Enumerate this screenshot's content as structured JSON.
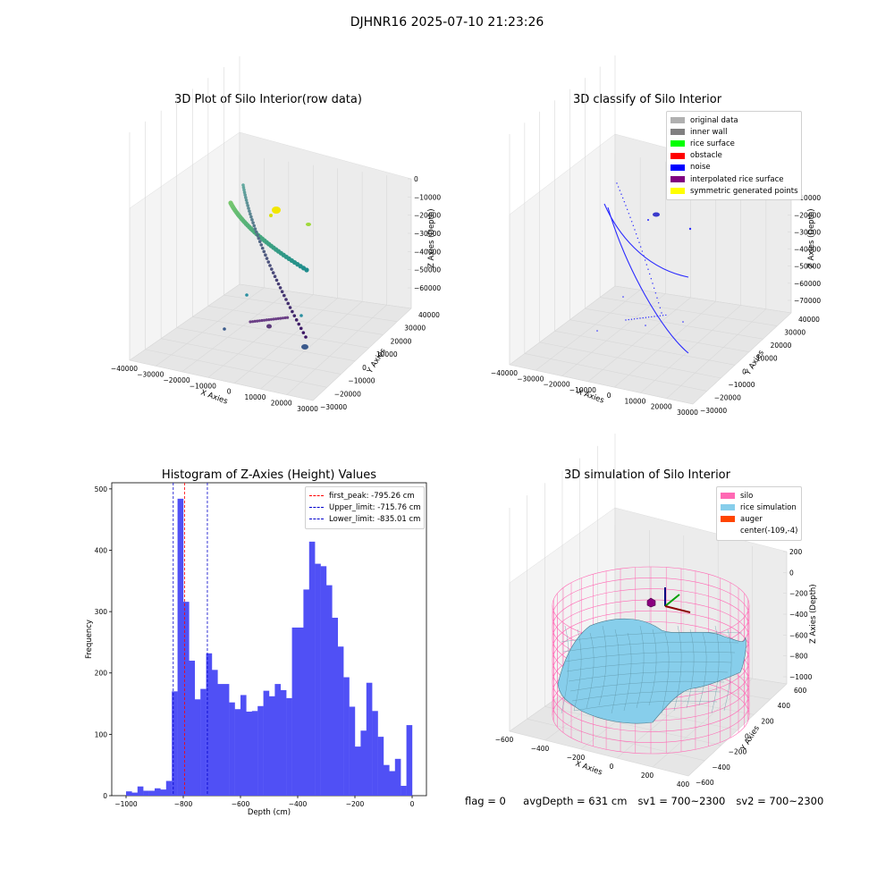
{
  "suptitle": "DJHNR16 2025-07-10 21:23:26",
  "footer": {
    "flag": "flag = 0",
    "avg_depth": "avgDepth = 631 cm",
    "sv1": "sv1 = 700~2300",
    "sv2": "sv2 = 700~2300"
  },
  "colors": {
    "hist_bar": "#5050f5",
    "first_peak": "#ff0000",
    "limit": "#0000cc",
    "silo": "#ff69b4",
    "rice": "#87ceeb",
    "auger": "#ff4500"
  },
  "chart_data": [
    {
      "type": "scatter",
      "projection": "3d",
      "title": "3D Plot of Silo Interior(row data)",
      "xlabel": "X Axies",
      "ylabel": "Y Axies",
      "zlabel": "Z Axies (Depth)",
      "x_ticks": [
        "−40000",
        "−30000",
        "−20000",
        "−10000",
        "0",
        "10000",
        "20000",
        "30000"
      ],
      "y_ticks": [
        "−30000",
        "−20000",
        "−10000",
        "0",
        "10000",
        "20000",
        "30000",
        "40000"
      ],
      "z_ticks": [
        "0",
        "−10000",
        "−20000",
        "−30000",
        "−40000",
        "−50000",
        "−60000"
      ],
      "grid": true
    },
    {
      "type": "scatter",
      "projection": "3d",
      "title": "3D classify of Silo Interior",
      "xlabel": "X Axies",
      "ylabel": "Y Axies",
      "zlabel": "Z Axies (Depth)",
      "x_ticks": [
        "−40000",
        "−30000",
        "−20000",
        "−10000",
        "0",
        "10000",
        "20000",
        "30000"
      ],
      "y_ticks": [
        "−30000",
        "−20000",
        "−10000",
        "0",
        "10000",
        "20000",
        "30000",
        "40000"
      ],
      "z_ticks": [
        "0",
        "−10000",
        "−20000",
        "−30000",
        "−40000",
        "−50000",
        "−60000",
        "−70000"
      ],
      "legend": [
        {
          "label": "original data",
          "color": "#b0b0b0"
        },
        {
          "label": "inner wall",
          "color": "#808080"
        },
        {
          "label": "rice surface",
          "color": "#00ff00"
        },
        {
          "label": "obstacle",
          "color": "#ff0000"
        },
        {
          "label": "noise",
          "color": "#0000ff"
        },
        {
          "label": "interpolated rice surface",
          "color": "#800080"
        },
        {
          "label": "symmetric generated points",
          "color": "#ffff00"
        }
      ],
      "legend_loc": "upper right",
      "grid": true
    },
    {
      "type": "bar",
      "title": "Histogram of Z-Axies (Height) Values",
      "xlabel": "Depth (cm)",
      "ylabel": "Frequency",
      "xlim": [
        -1050,
        50
      ],
      "ylim": [
        0,
        510
      ],
      "x_ticks": [
        -1000,
        -800,
        -600,
        -400,
        -200,
        0
      ],
      "x_tick_labels": [
        "−1000",
        "−800",
        "−600",
        "−400",
        "−200",
        "0"
      ],
      "y_ticks": [
        0,
        100,
        200,
        300,
        400,
        500
      ],
      "bin_start": -1000,
      "bin_width": 20,
      "values": [
        7,
        5,
        15,
        8,
        8,
        12,
        10,
        24,
        170,
        484,
        316,
        220,
        157,
        174,
        232,
        205,
        182,
        182,
        152,
        141,
        164,
        137,
        138,
        146,
        171,
        162,
        182,
        172,
        159,
        274,
        274,
        336,
        414,
        378,
        374,
        343,
        290,
        243,
        193,
        145,
        80,
        106,
        184,
        138,
        96,
        50,
        40,
        60,
        16,
        115
      ],
      "vlines": [
        {
          "x": -795.26,
          "label": "first_peak: -795.26 cm",
          "color": "#ff0000"
        },
        {
          "x": -715.76,
          "label": "Upper_limit: -715.76 cm",
          "color": "#0000cc"
        },
        {
          "x": -835.01,
          "label": "Lower_limit: -835.01 cm",
          "color": "#0000cc"
        }
      ],
      "legend_loc": "upper right",
      "grid": false
    },
    {
      "type": "surface",
      "projection": "3d",
      "title": "3D simulation of Silo Interior",
      "xlabel": "X Axies",
      "ylabel": "Y Axies",
      "zlabel": "Z Axies (Depth)",
      "x_ticks": [
        "−600",
        "−400",
        "−200",
        "0",
        "200",
        "400"
      ],
      "y_ticks": [
        "−600",
        "−400",
        "−200",
        "0",
        "200",
        "400",
        "600"
      ],
      "z_ticks": [
        "200",
        "0",
        "−200",
        "−400",
        "−600",
        "−800",
        "−1000"
      ],
      "legend": [
        {
          "label": "silo",
          "color": "#ff69b4"
        },
        {
          "label": "rice simulation",
          "color": "#87ceeb"
        },
        {
          "label": "auger",
          "color": "#ff4500"
        },
        {
          "label": "center(-109,-4)",
          "color": ""
        }
      ],
      "legend_loc": "upper right",
      "grid": true
    }
  ]
}
